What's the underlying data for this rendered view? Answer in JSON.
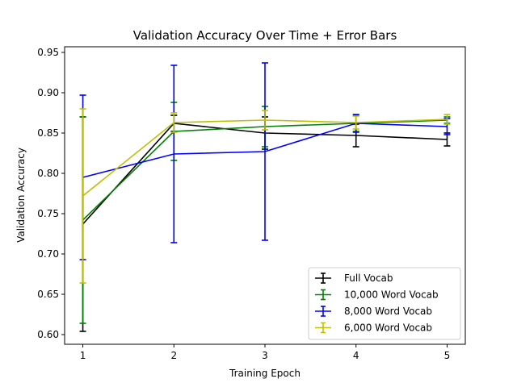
{
  "chart_data": {
    "type": "line",
    "title": "Validation Accuracy Over Time + Error Bars",
    "xlabel": "Training Epoch",
    "ylabel": "Validation Accuracy",
    "x": [
      1,
      2,
      3,
      4,
      5
    ],
    "xlim": [
      0.8,
      5.2
    ],
    "ylim": [
      0.588,
      0.957
    ],
    "x_ticks": [
      1,
      2,
      3,
      4,
      5
    ],
    "y_ticks": [
      0.6,
      0.65,
      0.7,
      0.75,
      0.8,
      0.85,
      0.9,
      0.95
    ],
    "y_tick_labels": [
      "0.60",
      "0.65",
      "0.70",
      "0.75",
      "0.80",
      "0.85",
      "0.90",
      "0.95"
    ],
    "grid": false,
    "legend_position": "lower-right",
    "series": [
      {
        "name": "Full Vocab",
        "color": "#000000",
        "values": [
          0.737,
          0.862,
          0.85,
          0.847,
          0.842
        ],
        "errors": [
          0.133,
          0.01,
          0.02,
          0.014,
          0.008
        ]
      },
      {
        "name": "10,000 Word Vocab",
        "color": "#008000",
        "values": [
          0.742,
          0.852,
          0.858,
          0.862,
          0.866
        ],
        "errors": [
          0.128,
          0.036,
          0.025,
          0.01,
          0.004
        ]
      },
      {
        "name": "8,000 Word Vocab",
        "color": "#0000ff",
        "values": [
          0.795,
          0.824,
          0.827,
          0.862,
          0.858
        ],
        "errors": [
          0.102,
          0.11,
          0.11,
          0.011,
          0.01
        ]
      },
      {
        "name": "6,000 Word Vocab",
        "color": "#bfbf00",
        "values": [
          0.772,
          0.863,
          0.866,
          0.863,
          0.867
        ],
        "errors": [
          0.108,
          0.012,
          0.012,
          0.008,
          0.006
        ]
      }
    ]
  }
}
